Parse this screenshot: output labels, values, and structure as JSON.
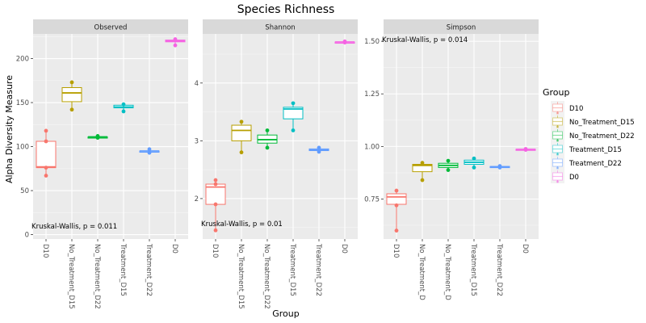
{
  "chart_data": {
    "type": "box",
    "title": "Species Richness",
    "xlabel": "Group",
    "ylabel": "Alpha Diversity Measure",
    "categories": [
      "D10",
      "No_Treatment_D15",
      "No_Treatment_D22",
      "Treatment_D15",
      "Treatment_D22",
      "D0"
    ],
    "colors": {
      "D10": "#F8766D",
      "No_Treatment_D15": "#B79F00",
      "No_Treatment_D22": "#00BA38",
      "Treatment_D15": "#00BFC4",
      "Treatment_D22": "#619CFF",
      "D0": "#F564E3"
    },
    "legend": {
      "title": "Group",
      "position": "right",
      "entries": [
        "D10",
        "No_Treatment_D15",
        "No_Treatment_D22",
        "Treatment_D15",
        "Treatment_D22",
        "D0"
      ]
    },
    "panels": [
      {
        "name": "Observed",
        "annotation": "Kruskal-Wallis, p = 0.011",
        "annotation_anchor": "bottom-left",
        "ylim": [
          -5,
          228
        ],
        "yticks": [
          0,
          50,
          100,
          150,
          200
        ],
        "ytick_labels": [
          "0",
          "50",
          "100",
          "150",
          "200"
        ],
        "xtick_labels": [
          "D10",
          "No_Treatment_D15",
          "No_Treatment_D22",
          "Treatment_D15",
          "Treatment_D22",
          "D0"
        ],
        "boxes": [
          {
            "group": "D10",
            "min": 67,
            "q1": 76,
            "median": 77,
            "q3": 106,
            "max": 118,
            "points": [
              67,
              76,
              106,
              118
            ]
          },
          {
            "group": "No_Treatment_D15",
            "min": 142,
            "q1": 151,
            "median": 161,
            "q3": 167,
            "max": 173,
            "points": [
              142,
              173
            ]
          },
          {
            "group": "No_Treatment_D22",
            "min": 110,
            "q1": 110,
            "median": 111,
            "q3": 111,
            "max": 112,
            "points": [
              110,
              112
            ]
          },
          {
            "group": "Treatment_D15",
            "min": 140,
            "q1": 144,
            "median": 145,
            "q3": 147,
            "max": 148,
            "points": [
              140,
              148
            ]
          },
          {
            "group": "Treatment_D22",
            "min": 93,
            "q1": 94,
            "median": 95,
            "q3": 95,
            "max": 97,
            "points": [
              93,
              97
            ]
          },
          {
            "group": "D0",
            "min": 215,
            "q1": 219,
            "median": 220,
            "q3": 221,
            "max": 222,
            "points": [
              215,
              222
            ]
          }
        ]
      },
      {
        "name": "Shannon",
        "annotation": "Kruskal-Wallis, p = 0.01",
        "annotation_anchor": "bottom-left",
        "ylim": [
          1.3,
          4.85
        ],
        "yticks": [
          2,
          3,
          4
        ],
        "ytick_labels": [
          "2",
          "3",
          "4"
        ],
        "xtick_labels": [
          "D10",
          "No_Treatment_D15",
          "No_Treatment_D22",
          "Treatment_D15",
          "Treatment_D22",
          "D0"
        ],
        "boxes": [
          {
            "group": "D10",
            "min": 1.45,
            "q1": 1.9,
            "median": 2.2,
            "q3": 2.25,
            "max": 2.32,
            "points": [
              1.45,
              1.9,
              2.25,
              2.32
            ]
          },
          {
            "group": "No_Treatment_D15",
            "min": 2.8,
            "q1": 3.0,
            "median": 3.18,
            "q3": 3.27,
            "max": 3.33,
            "points": [
              2.8,
              3.33
            ]
          },
          {
            "group": "No_Treatment_D22",
            "min": 2.88,
            "q1": 2.96,
            "median": 3.02,
            "q3": 3.1,
            "max": 3.18,
            "points": [
              2.88,
              3.18
            ]
          },
          {
            "group": "Treatment_D15",
            "min": 3.18,
            "q1": 3.38,
            "median": 3.55,
            "q3": 3.58,
            "max": 3.65,
            "points": [
              3.18,
              3.65
            ]
          },
          {
            "group": "Treatment_D22",
            "min": 2.81,
            "q1": 2.83,
            "median": 2.84,
            "q3": 2.86,
            "max": 2.88,
            "points": [
              2.81,
              2.88
            ]
          },
          {
            "group": "D0",
            "min": 4.7,
            "q1": 4.7,
            "median": 4.71,
            "q3": 4.71,
            "max": 4.72,
            "points": [
              4.7,
              4.72
            ]
          }
        ]
      },
      {
        "name": "Simpson",
        "annotation": "Kruskal-Wallis, p = 0.014",
        "annotation_anchor": "top-left",
        "ylim": [
          0.56,
          1.535
        ],
        "yticks": [
          0.75,
          1.0,
          1.25,
          1.5
        ],
        "ytick_labels": [
          "0.75",
          "1.00",
          "1.25",
          "1.50"
        ],
        "xtick_labels": [
          "D10",
          "No_Treatment_D",
          "No_Treatment_D",
          "Treatment_D15",
          "Treatment_D22",
          "D0"
        ],
        "boxes": [
          {
            "group": "D10",
            "min": 0.6,
            "q1": 0.725,
            "median": 0.76,
            "q3": 0.775,
            "max": 0.79,
            "points": [
              0.6,
              0.72,
              0.79
            ]
          },
          {
            "group": "No_Treatment_D15",
            "min": 0.84,
            "q1": 0.88,
            "median": 0.91,
            "q3": 0.915,
            "max": 0.922,
            "points": [
              0.84,
              0.922
            ]
          },
          {
            "group": "No_Treatment_D22",
            "min": 0.888,
            "q1": 0.9,
            "median": 0.91,
            "q3": 0.92,
            "max": 0.932,
            "points": [
              0.888,
              0.932
            ]
          },
          {
            "group": "Treatment_D15",
            "min": 0.9,
            "q1": 0.915,
            "median": 0.925,
            "q3": 0.935,
            "max": 0.943,
            "points": [
              0.9,
              0.943
            ]
          },
          {
            "group": "Treatment_D22",
            "min": 0.9,
            "q1": 0.902,
            "median": 0.903,
            "q3": 0.905,
            "max": 0.907,
            "points": [
              0.9,
              0.907
            ]
          },
          {
            "group": "D0",
            "min": 0.984,
            "q1": 0.985,
            "median": 0.986,
            "q3": 0.987,
            "max": 0.988,
            "points": [
              0.984,
              0.988
            ]
          }
        ]
      }
    ]
  }
}
